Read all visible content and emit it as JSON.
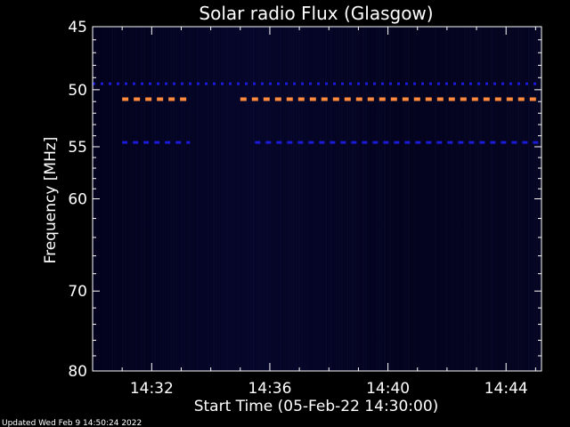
{
  "footer": {
    "updated": "Updated Wed Feb  9 14:50:24 2022"
  },
  "colors": {
    "background": "#000000",
    "axis": "#ffffff",
    "plot_bg": "#03031e",
    "hot_band": "#ff8a3c",
    "cool_band": "#1a1ad8"
  },
  "chart_data": {
    "type": "heatmap",
    "title": "Solar radio Flux (Glasgow)",
    "xlabel": "Start Time (05-Feb-22 14:30:00)",
    "ylabel": "Frequency [MHz]",
    "x_unit": "minutes after 14:30:00",
    "xlim": [
      0,
      15.2
    ],
    "ylim": [
      45,
      80
    ],
    "y_scale": "log",
    "grid": false,
    "x_ticks": [
      {
        "value": 2,
        "label": "14:32"
      },
      {
        "value": 6,
        "label": "14:36"
      },
      {
        "value": 10,
        "label": "14:40"
      },
      {
        "value": 14,
        "label": "14:44"
      }
    ],
    "y_ticks": [
      {
        "value": 45,
        "label": "45"
      },
      {
        "value": 50,
        "label": "50"
      },
      {
        "value": 55,
        "label": "55"
      },
      {
        "value": 60,
        "label": "60"
      },
      {
        "value": 70,
        "label": "70"
      },
      {
        "value": 80,
        "label": "80"
      }
    ],
    "bands": [
      {
        "freq": 49.5,
        "intensity": "low",
        "segments": [
          [
            0,
            15.2
          ]
        ]
      },
      {
        "freq": 50.8,
        "intensity": "high",
        "segments": [
          [
            1.0,
            3.3
          ],
          [
            5.0,
            15.2
          ]
        ]
      },
      {
        "freq": 54.6,
        "intensity": "low",
        "segments": [
          [
            1.0,
            3.3
          ],
          [
            5.5,
            15.2
          ]
        ]
      }
    ]
  }
}
